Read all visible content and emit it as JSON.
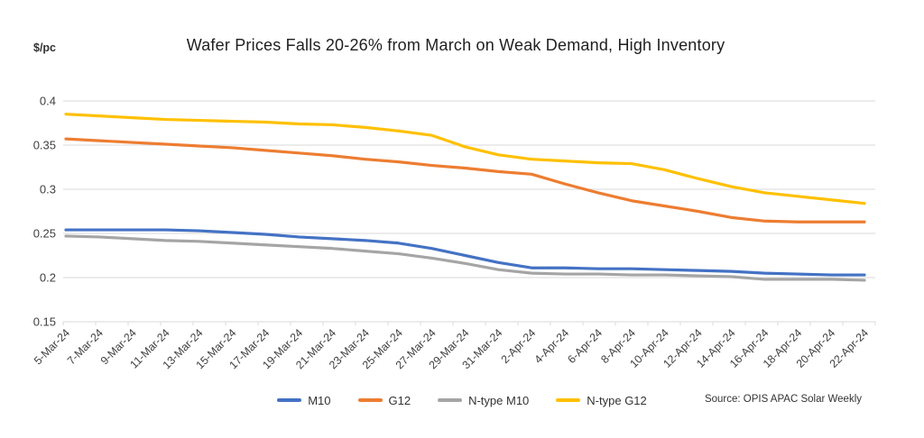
{
  "chart_data": {
    "type": "line",
    "title": "Wafer Prices Falls 20-26% from March on Weak Demand, High Inventory",
    "ylabel": "$/pc",
    "source_note": "Source: OPIS APAC Solar Weekly",
    "ylim": [
      0.15,
      0.4
    ],
    "ytick_labels": [
      "0.4",
      "0.35",
      "0.3",
      "0.25",
      "0.2",
      "0.15"
    ],
    "grid": true,
    "legend_position": "bottom",
    "categories": [
      "5-Mar-24",
      "7-Mar-24",
      "9-Mar-24",
      "11-Mar-24",
      "13-Mar-24",
      "15-Mar-24",
      "17-Mar-24",
      "19-Mar-24",
      "21-Mar-24",
      "23-Mar-24",
      "25-Mar-24",
      "27-Mar-24",
      "29-Mar-24",
      "31-Mar-24",
      "2-Apr-24",
      "4-Apr-24",
      "6-Apr-24",
      "8-Apr-24",
      "10-Apr-24",
      "12-Apr-24",
      "14-Apr-24",
      "16-Apr-24",
      "18-Apr-24",
      "20-Apr-24",
      "22-Apr-24"
    ],
    "series": [
      {
        "name": "M10",
        "color": "#4472C4",
        "values": [
          0.254,
          0.254,
          0.254,
          0.254,
          0.253,
          0.251,
          0.249,
          0.246,
          0.244,
          0.242,
          0.239,
          0.233,
          0.225,
          0.217,
          0.211,
          0.211,
          0.21,
          0.21,
          0.209,
          0.208,
          0.207,
          0.205,
          0.204,
          0.203,
          0.203
        ]
      },
      {
        "name": "G12",
        "color": "#ED7D31",
        "values": [
          0.357,
          0.355,
          0.353,
          0.351,
          0.349,
          0.347,
          0.344,
          0.341,
          0.338,
          0.334,
          0.331,
          0.327,
          0.324,
          0.32,
          0.317,
          0.306,
          0.296,
          0.287,
          0.281,
          0.275,
          0.268,
          0.264,
          0.263,
          0.263,
          0.263
        ]
      },
      {
        "name": "N-type M10",
        "color": "#A5A5A5",
        "values": [
          0.247,
          0.246,
          0.244,
          0.242,
          0.241,
          0.239,
          0.237,
          0.235,
          0.233,
          0.23,
          0.227,
          0.222,
          0.216,
          0.209,
          0.205,
          0.204,
          0.204,
          0.203,
          0.203,
          0.202,
          0.201,
          0.198,
          0.198,
          0.198,
          0.197
        ]
      },
      {
        "name": "N-type G12",
        "color": "#FFC000",
        "values": [
          0.385,
          0.383,
          0.381,
          0.379,
          0.378,
          0.377,
          0.376,
          0.374,
          0.373,
          0.37,
          0.366,
          0.361,
          0.348,
          0.339,
          0.334,
          0.332,
          0.33,
          0.329,
          0.322,
          0.312,
          0.303,
          0.296,
          0.292,
          0.288,
          0.284
        ]
      }
    ],
    "style": {
      "gridline_color": "#D9D9D9",
      "axis_text_color": "#404040",
      "line_width": 3.2
    }
  }
}
